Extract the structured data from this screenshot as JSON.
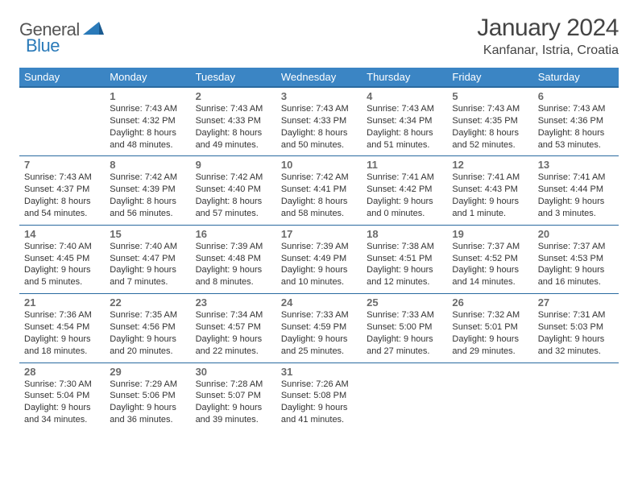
{
  "logo": {
    "text1": "General",
    "text2": "Blue"
  },
  "title": "January 2024",
  "location": "Kanfanar, Istria, Croatia",
  "colors": {
    "header_bg": "#3b85c4",
    "header_border": "#2a6aa0",
    "logo_blue": "#2a7ab9",
    "text": "#333333"
  },
  "weekdays": [
    "Sunday",
    "Monday",
    "Tuesday",
    "Wednesday",
    "Thursday",
    "Friday",
    "Saturday"
  ],
  "days": {
    "1": {
      "sunrise": "7:43 AM",
      "sunset": "4:32 PM",
      "daylight": "8 hours and 48 minutes."
    },
    "2": {
      "sunrise": "7:43 AM",
      "sunset": "4:33 PM",
      "daylight": "8 hours and 49 minutes."
    },
    "3": {
      "sunrise": "7:43 AM",
      "sunset": "4:33 PM",
      "daylight": "8 hours and 50 minutes."
    },
    "4": {
      "sunrise": "7:43 AM",
      "sunset": "4:34 PM",
      "daylight": "8 hours and 51 minutes."
    },
    "5": {
      "sunrise": "7:43 AM",
      "sunset": "4:35 PM",
      "daylight": "8 hours and 52 minutes."
    },
    "6": {
      "sunrise": "7:43 AM",
      "sunset": "4:36 PM",
      "daylight": "8 hours and 53 minutes."
    },
    "7": {
      "sunrise": "7:43 AM",
      "sunset": "4:37 PM",
      "daylight": "8 hours and 54 minutes."
    },
    "8": {
      "sunrise": "7:42 AM",
      "sunset": "4:39 PM",
      "daylight": "8 hours and 56 minutes."
    },
    "9": {
      "sunrise": "7:42 AM",
      "sunset": "4:40 PM",
      "daylight": "8 hours and 57 minutes."
    },
    "10": {
      "sunrise": "7:42 AM",
      "sunset": "4:41 PM",
      "daylight": "8 hours and 58 minutes."
    },
    "11": {
      "sunrise": "7:41 AM",
      "sunset": "4:42 PM",
      "daylight": "9 hours and 0 minutes."
    },
    "12": {
      "sunrise": "7:41 AM",
      "sunset": "4:43 PM",
      "daylight": "9 hours and 1 minute."
    },
    "13": {
      "sunrise": "7:41 AM",
      "sunset": "4:44 PM",
      "daylight": "9 hours and 3 minutes."
    },
    "14": {
      "sunrise": "7:40 AM",
      "sunset": "4:45 PM",
      "daylight": "9 hours and 5 minutes."
    },
    "15": {
      "sunrise": "7:40 AM",
      "sunset": "4:47 PM",
      "daylight": "9 hours and 7 minutes."
    },
    "16": {
      "sunrise": "7:39 AM",
      "sunset": "4:48 PM",
      "daylight": "9 hours and 8 minutes."
    },
    "17": {
      "sunrise": "7:39 AM",
      "sunset": "4:49 PM",
      "daylight": "9 hours and 10 minutes."
    },
    "18": {
      "sunrise": "7:38 AM",
      "sunset": "4:51 PM",
      "daylight": "9 hours and 12 minutes."
    },
    "19": {
      "sunrise": "7:37 AM",
      "sunset": "4:52 PM",
      "daylight": "9 hours and 14 minutes."
    },
    "20": {
      "sunrise": "7:37 AM",
      "sunset": "4:53 PM",
      "daylight": "9 hours and 16 minutes."
    },
    "21": {
      "sunrise": "7:36 AM",
      "sunset": "4:54 PM",
      "daylight": "9 hours and 18 minutes."
    },
    "22": {
      "sunrise": "7:35 AM",
      "sunset": "4:56 PM",
      "daylight": "9 hours and 20 minutes."
    },
    "23": {
      "sunrise": "7:34 AM",
      "sunset": "4:57 PM",
      "daylight": "9 hours and 22 minutes."
    },
    "24": {
      "sunrise": "7:33 AM",
      "sunset": "4:59 PM",
      "daylight": "9 hours and 25 minutes."
    },
    "25": {
      "sunrise": "7:33 AM",
      "sunset": "5:00 PM",
      "daylight": "9 hours and 27 minutes."
    },
    "26": {
      "sunrise": "7:32 AM",
      "sunset": "5:01 PM",
      "daylight": "9 hours and 29 minutes."
    },
    "27": {
      "sunrise": "7:31 AM",
      "sunset": "5:03 PM",
      "daylight": "9 hours and 32 minutes."
    },
    "28": {
      "sunrise": "7:30 AM",
      "sunset": "5:04 PM",
      "daylight": "9 hours and 34 minutes."
    },
    "29": {
      "sunrise": "7:29 AM",
      "sunset": "5:06 PM",
      "daylight": "9 hours and 36 minutes."
    },
    "30": {
      "sunrise": "7:28 AM",
      "sunset": "5:07 PM",
      "daylight": "9 hours and 39 minutes."
    },
    "31": {
      "sunrise": "7:26 AM",
      "sunset": "5:08 PM",
      "daylight": "9 hours and 41 minutes."
    }
  },
  "grid": [
    [
      null,
      1,
      2,
      3,
      4,
      5,
      6
    ],
    [
      7,
      8,
      9,
      10,
      11,
      12,
      13
    ],
    [
      14,
      15,
      16,
      17,
      18,
      19,
      20
    ],
    [
      21,
      22,
      23,
      24,
      25,
      26,
      27
    ],
    [
      28,
      29,
      30,
      31,
      null,
      null,
      null
    ]
  ],
  "labels": {
    "sunrise": "Sunrise:",
    "sunset": "Sunset:",
    "daylight": "Daylight:"
  }
}
